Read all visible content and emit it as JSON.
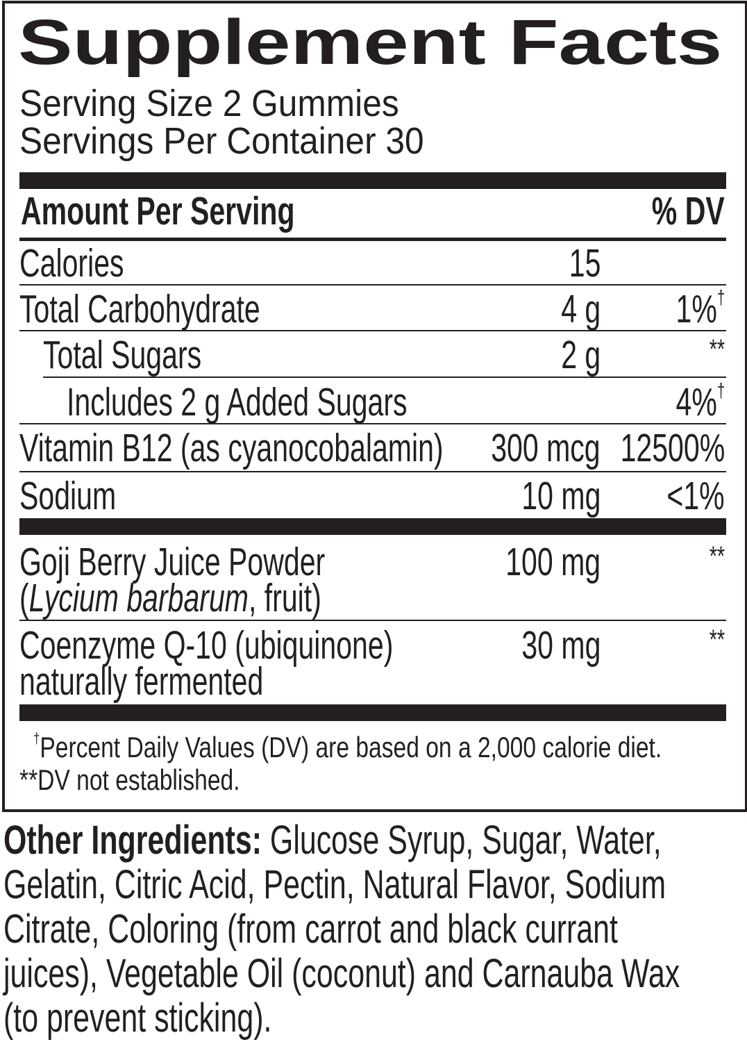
{
  "title": "Supplement Facts",
  "serving_size": "Serving Size 2 Gummies",
  "servings_per_container": "Servings Per Container 30",
  "header": {
    "amount": "Amount Per Serving",
    "dv": "% DV"
  },
  "rows": [
    {
      "name": "Calories",
      "amount": "15",
      "dv": "",
      "mark": ""
    },
    {
      "name": "Total Carbohydrate",
      "amount": "4 g",
      "dv": "1%",
      "mark": "†"
    },
    {
      "name": "Total Sugars",
      "amount": "2 g",
      "dv": "**",
      "mark": ""
    },
    {
      "name": "Includes 2 g Added Sugars",
      "amount": "",
      "dv": "4%",
      "mark": "†"
    },
    {
      "name": "Vitamin B12 (as cyanocobalamin)",
      "amount": "300 mcg",
      "dv": "12500%",
      "mark": ""
    },
    {
      "name": "Sodium",
      "amount": "10 mg",
      "dv": "<1%",
      "mark": ""
    },
    {
      "name": "Goji Berry Juice Powder",
      "name_line2_italic": "Lycium barbarum",
      "name_line2_rest": ", fruit)",
      "name_line2_open": "(",
      "amount": "100 mg",
      "dv": "**"
    },
    {
      "name": "Coenzyme Q-10 (ubiquinone)",
      "name_line2": "naturally fermented",
      "amount": "30 mg",
      "dv": "**"
    }
  ],
  "footnotes": {
    "dagger_symbol": "†",
    "dagger_text": "Percent Daily Values (DV) are based on a 2,000 calorie diet.",
    "star_symbol": "**",
    "star_text": "DV not established."
  },
  "other_ingredients": {
    "label": "Other Ingredients:",
    "lines": [
      " Glucose Syrup, Sugar, Water,",
      "Gelatin, Citric Acid, Pectin, Natural Flavor, Sodium",
      "Citrate, Coloring (from carrot and black currant",
      "juices), Vegetable Oil (coconut) and Carnauba Wax",
      "(to prevent sticking)."
    ]
  }
}
